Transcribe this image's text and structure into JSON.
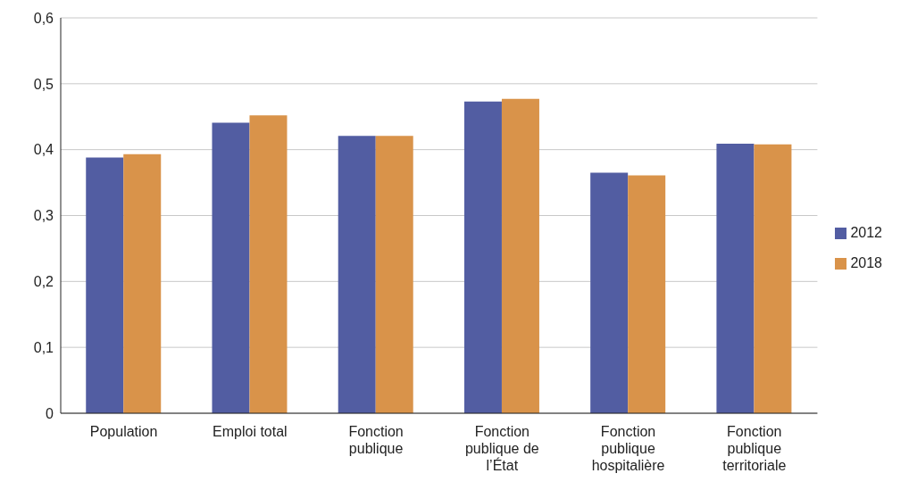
{
  "chart_data": {
    "type": "bar",
    "categories": [
      "Population",
      "Emploi total",
      "Fonction\npublique",
      "Fonction\npublique de\nl’État",
      "Fonction\npublique\nhospitalière",
      "Fonction\npublique\nterritoriale"
    ],
    "series": [
      {
        "name": "2012",
        "color": "#525da2",
        "values": [
          0.388,
          0.441,
          0.421,
          0.473,
          0.365,
          0.409
        ]
      },
      {
        "name": "2018",
        "color": "#d9934a",
        "values": [
          0.393,
          0.452,
          0.421,
          0.477,
          0.361,
          0.408
        ]
      }
    ],
    "ylim": [
      0,
      0.6
    ],
    "yticks": [
      {
        "value": 0,
        "label": "0"
      },
      {
        "value": 0.1,
        "label": "0,1"
      },
      {
        "value": 0.2,
        "label": "0,2"
      },
      {
        "value": 0.3,
        "label": "0,3"
      },
      {
        "value": 0.4,
        "label": "0,4"
      },
      {
        "value": 0.5,
        "label": "0,5"
      },
      {
        "value": 0.6,
        "label": "0,6"
      }
    ],
    "grid": "y",
    "legend": "right"
  }
}
